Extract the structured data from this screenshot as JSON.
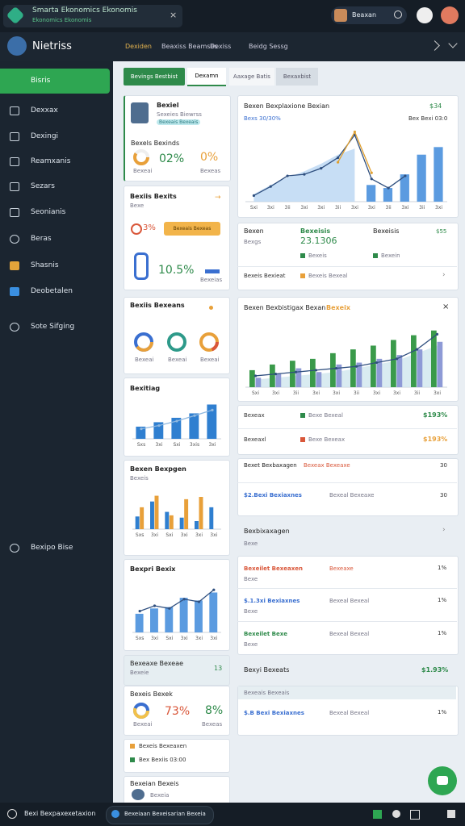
{
  "top_bar": {
    "notice_title": "Smarta Ekonomics Ekonomis",
    "notice_subtitle": "Ekonomics Ekonomis",
    "close": "×",
    "user_name": "Beaxan"
  },
  "header": {
    "app_name": "Nietriss",
    "tabs": [
      "Dexiden",
      "Beaxiss Beamses",
      "Dexiss",
      "Beidg Sessg"
    ]
  },
  "sidebar": {
    "items": [
      "Bisris",
      "Dexxax",
      "Dexingi",
      "Reamxanis",
      "Sezars",
      "Seonianis",
      "Beras",
      "Shasnis",
      "Deobetalen",
      "Sote Sifging"
    ],
    "footer": "Bexipo Bise"
  },
  "view_tabs": [
    "Bevings Bestbist",
    "Dexamn",
    "Aaxage Batis",
    "Bexaxbist"
  ],
  "left_cards": {
    "profile": {
      "name": "Bexiel",
      "role": "Sexeies Biewrss",
      "badge": "Bexeais Bexeais",
      "section": "Bexels Bexinds",
      "stat_a": "02%",
      "stat_b": "0%",
      "label_a": "Bexeai",
      "label_b": "Bexeas"
    },
    "progress": {
      "title": "Bexiis Bexits",
      "subtitle": "Bexe",
      "stat_a": "3%",
      "button": "Bexeais Bexeas",
      "stat_b": "10.5%",
      "label": "Bexeias"
    },
    "donuts": {
      "title": "Bexiis Bexeans",
      "labels": [
        "Bexeai",
        "Bexeai",
        "Bexeai"
      ]
    },
    "ratings": {
      "title": "Bexitiag"
    },
    "mixed": {
      "title": "Bexen Bexpgen",
      "subtitle": "Bexeis"
    },
    "trend": {
      "title": "Bexpri Bexix"
    },
    "summary": {
      "title": "Bexeaxe Bexeae",
      "subtitle": "Bexeie",
      "value": "13"
    },
    "split": {
      "title": "Bexeis Bexek",
      "stat_a": "73%",
      "stat_b": "8%",
      "label_a": "Bexeai",
      "label_b": "Bexeas"
    },
    "legend": {
      "items": [
        "Bexeis Bexeaxen",
        "Bex Bexiis 03:00"
      ]
    },
    "person": {
      "title": "Bexeian Bexeis",
      "subtitle": "Bexeia"
    }
  },
  "right_cards": {
    "overview": {
      "title": "Bexen Bexplaxione Bexian",
      "value": "$34",
      "sub_left": "Bexs 30/30%",
      "sub_right": "Bex Bexi 03:0"
    },
    "metrics": {
      "col_a_title": "Bexen",
      "col_a_sub": "Bexgs",
      "col_b_title": "Bexeisis",
      "col_b_value": "23.1306",
      "col_b_legend": "Bexeis",
      "col_c_title": "Bexeisis",
      "col_c_legend": "Bexein",
      "col_d_value": "$55",
      "footer": "Bexeis Bexieat",
      "footer_chip": "Bexeis Bexeal"
    },
    "trend": {
      "title": "Bexen Bexbistigax Bexan",
      "highlight": "Bexeix",
      "close": "×"
    },
    "rows": [
      {
        "label": "Bexeax",
        "chip": "Bexe Bexeal",
        "value": "$193%"
      },
      {
        "label": "Bexeaxl",
        "chip": "Bexe Bexeax",
        "value": "$193%"
      }
    ],
    "budget": [
      {
        "label": "Bexet Bexbaxagen",
        "note": "Bexeax Bexeaxe",
        "value": "30"
      },
      {
        "label": "$2.Bexi Bexiaxnes",
        "note": "Bexeal Bexeaxe",
        "value": "30"
      }
    ],
    "section": {
      "title": "Bexbixaxagen",
      "subtitle": "Bexe"
    },
    "list": [
      {
        "label": "Bexeilet Bexeaxen",
        "sub": "Bexe",
        "note": "Bexeaxe",
        "value": "1%"
      },
      {
        "label": "$.1.3xi Bexiaxnes",
        "sub": "Bexe",
        "note": "Bexeal Bexeal",
        "value": "1%"
      },
      {
        "label": "Bexeilet Bexe",
        "sub": "Bexe",
        "note": "Bexeal Bexeal",
        "value": "1%"
      }
    ],
    "total": {
      "label": "Bexyi Bexeats",
      "value": "$1.93%"
    },
    "last": {
      "title": "Bexeais Bexeais",
      "label": "$.B Bexi Bexiaxnes",
      "note": "Bexeal Bexeal",
      "value": "1%"
    }
  },
  "bottom_bar": {
    "label": "Bexi Bexpaxexetaxion",
    "search": "Bexeiaan Bexeisarian Bexeia"
  },
  "chart_data": [
    {
      "type": "bar",
      "categories": [
        "Sxi",
        "3xi",
        "3ii",
        "3xi",
        "3xi",
        "3ii",
        "3xi",
        "3xi",
        "3ii",
        "3xi",
        "3ii",
        "3xi"
      ],
      "ylim": [
        0,
        100
      ],
      "series": [
        {
          "kind": "area",
          "color": "#b9d6f2",
          "values": [
            10,
            22,
            32,
            40,
            50,
            62,
            70,
            null,
            null,
            null,
            null,
            null
          ]
        },
        {
          "kind": "bar",
          "color": "#5b9be0",
          "values": [
            null,
            null,
            null,
            null,
            null,
            null,
            null,
            22,
            18,
            36,
            62,
            72
          ]
        },
        {
          "kind": "line",
          "color": "#2f4f7f",
          "values": [
            8,
            20,
            34,
            36,
            44,
            58,
            88,
            30,
            18,
            34,
            null,
            null
          ]
        },
        {
          "kind": "line",
          "color": "#e0a030",
          "values": [
            null,
            null,
            null,
            null,
            null,
            52,
            92,
            38,
            null,
            null,
            null,
            null
          ]
        }
      ]
    },
    {
      "type": "bar",
      "categories": [
        "Sxi",
        "3xi",
        "3ii",
        "3xi",
        "3xi",
        "3ii",
        "3xi",
        "3xi",
        "3ii",
        "3xi"
      ],
      "ylim": [
        0,
        70
      ],
      "series": [
        {
          "kind": "area",
          "color": "#cfe6ee",
          "values": [
            8,
            10,
            12,
            14,
            16,
            20,
            24,
            28,
            36,
            44
          ]
        },
        {
          "kind": "bar",
          "color": "#3a9a4a",
          "values": [
            18,
            24,
            28,
            30,
            36,
            40,
            44,
            50,
            55,
            60
          ]
        },
        {
          "kind": "bar",
          "color": "#8e9ad6",
          "values": [
            10,
            14,
            20,
            16,
            24,
            26,
            30,
            34,
            40,
            48
          ]
        },
        {
          "kind": "line",
          "color": "#2f4f7f",
          "values": [
            12,
            14,
            16,
            18,
            20,
            22,
            26,
            30,
            40,
            56
          ]
        }
      ]
    },
    {
      "type": "bar",
      "categories": [
        "Sxs",
        "3xi",
        "Sxi",
        "3xis",
        "3xi"
      ],
      "ylim": [
        0,
        70
      ],
      "series": [
        {
          "kind": "bar",
          "color": "#2f7fd0",
          "values": [
            22,
            30,
            38,
            46,
            62
          ]
        },
        {
          "kind": "line",
          "color": "#8fb8e0",
          "values": [
            18,
            24,
            32,
            42,
            52
          ]
        }
      ]
    },
    {
      "type": "bar",
      "categories": [
        "Sxs",
        "3xi",
        "Sxi",
        "3xi",
        "3xi",
        "3xi"
      ],
      "ylim": [
        0,
        70
      ],
      "series": [
        {
          "kind": "bar",
          "color": "#2f7fd0",
          "values": [
            22,
            48,
            30,
            20,
            14,
            38
          ]
        },
        {
          "kind": "bar",
          "color": "#e8a03a",
          "values": [
            38,
            58,
            24,
            52,
            56,
            null
          ]
        }
      ]
    },
    {
      "type": "bar",
      "categories": [
        "Sxs",
        "3xi",
        "Sxi",
        "3xi",
        "3xi",
        "3xi"
      ],
      "ylim": [
        0,
        80
      ],
      "series": [
        {
          "kind": "bar",
          "color": "#5b9be0",
          "values": [
            28,
            36,
            38,
            52,
            48,
            60
          ]
        },
        {
          "kind": "line",
          "color": "#2f4f7f",
          "values": [
            32,
            40,
            36,
            50,
            46,
            64
          ]
        }
      ]
    }
  ]
}
